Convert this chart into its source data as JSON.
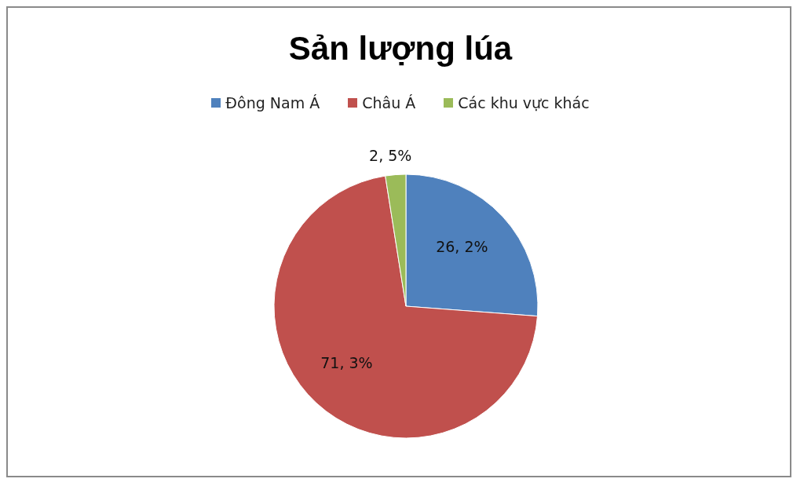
{
  "chart_data": {
    "type": "pie",
    "title": "Sản lượng lúa",
    "categories": [
      "Đông Nam Á",
      "Châu Á",
      "Các khu vực khác"
    ],
    "values": [
      26.2,
      71.3,
      2.5
    ],
    "colors": [
      "#4f81bd",
      "#c0504d",
      "#9bbb59"
    ],
    "value_labels": [
      "26, 2%",
      "71, 3%",
      "2, 5%"
    ],
    "legend": "top"
  }
}
